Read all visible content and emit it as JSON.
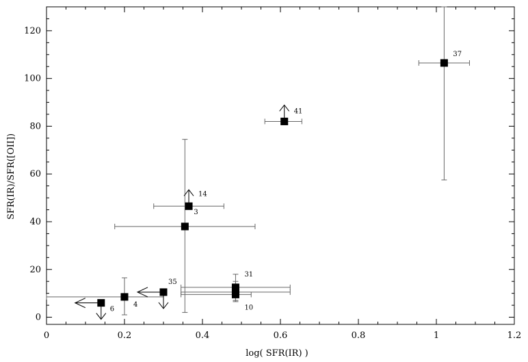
{
  "chart_data": {
    "type": "scatter",
    "title": "",
    "xlabel": "log( SFR(IR) )",
    "ylabel": "SFR(IR)/SFR([OII])",
    "xlim": [
      0,
      1.2
    ],
    "ylim": [
      -3,
      130
    ],
    "x_ticks": [
      0,
      0.2,
      0.4,
      0.6,
      0.8,
      1,
      1.2
    ],
    "x_tick_labels": [
      "0",
      "0.2",
      "0.4",
      "0.6",
      "0.8",
      "1",
      "1.2"
    ],
    "y_ticks": [
      0,
      20,
      40,
      60,
      80,
      100,
      120
    ],
    "y_tick_labels": [
      "0",
      "20",
      "40",
      "60",
      "80",
      "100",
      "120"
    ],
    "grid": false,
    "points": [
      {
        "label": "37",
        "x": 1.02,
        "y": 106.5,
        "x_err": [
          0.955,
          1.085
        ],
        "y_err": [
          57.5,
          130
        ],
        "limits": []
      },
      {
        "label": "41",
        "x": 0.61,
        "y": 82,
        "x_err": [
          0.56,
          0.655
        ],
        "y_err": null,
        "limits": [
          "lower"
        ]
      },
      {
        "label": "14",
        "x": 0.365,
        "y": 46.5,
        "x_err": [
          0.275,
          0.455
        ],
        "y_err": null,
        "limits": [
          "lower"
        ]
      },
      {
        "label": "3",
        "x": 0.355,
        "y": 38,
        "x_err": [
          0.175,
          0.535
        ],
        "y_err": [
          2,
          74.5
        ],
        "limits": []
      },
      {
        "label": "31",
        "x": 0.485,
        "y": 12.5,
        "x_err": [
          0.345,
          0.625
        ],
        "y_err": [
          7,
          18
        ],
        "limits": []
      },
      {
        "label": "",
        "x": 0.485,
        "y": 10.5,
        "x_err": [
          0.345,
          0.625
        ],
        "y_err": [
          7,
          15
        ],
        "limits": []
      },
      {
        "label": "10",
        "x": 0.485,
        "y": 9.5,
        "x_err": [
          0.345,
          0.525
        ],
        "y_err": [
          6.5,
          13
        ],
        "limits": []
      },
      {
        "label": "35",
        "x": 0.3,
        "y": 10.5,
        "x_err": null,
        "y_err": null,
        "limits": [
          "left",
          "upper"
        ]
      },
      {
        "label": "4",
        "x": 0.2,
        "y": 8.5,
        "x_err": [
          0.0,
          0.3
        ],
        "y_err": [
          1,
          16.5
        ],
        "limits": []
      },
      {
        "label": "6",
        "x": 0.14,
        "y": 6,
        "x_err": null,
        "y_err": null,
        "limits": [
          "left",
          "upper"
        ]
      }
    ]
  }
}
